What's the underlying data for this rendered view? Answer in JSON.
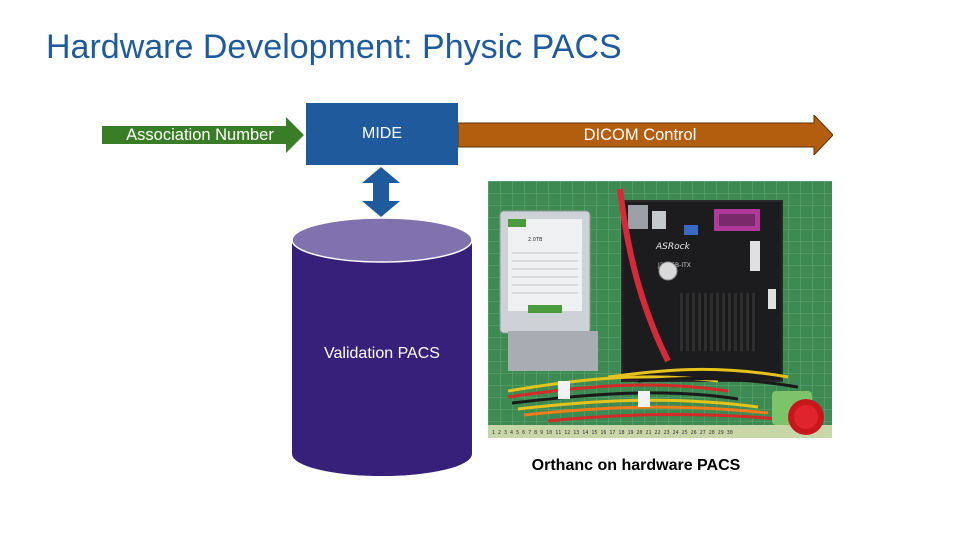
{
  "title": "Hardware Development: Physic PACS",
  "diagram": {
    "input_arrow_label": "Association Number",
    "center_box_label": "MIDE",
    "output_arrow_label": "DICOM Control",
    "database_label": "Validation PACS"
  },
  "photo": {
    "caption": "Orthanc on hardware PACS"
  },
  "colors": {
    "title": "#1f5b9c",
    "green_arrow": "#3a7d27",
    "mide_box": "#1f5b9c",
    "orange_arrow": "#b35e0e",
    "cylinder_top": "#8072ad",
    "cylinder_body": "#37207a"
  }
}
